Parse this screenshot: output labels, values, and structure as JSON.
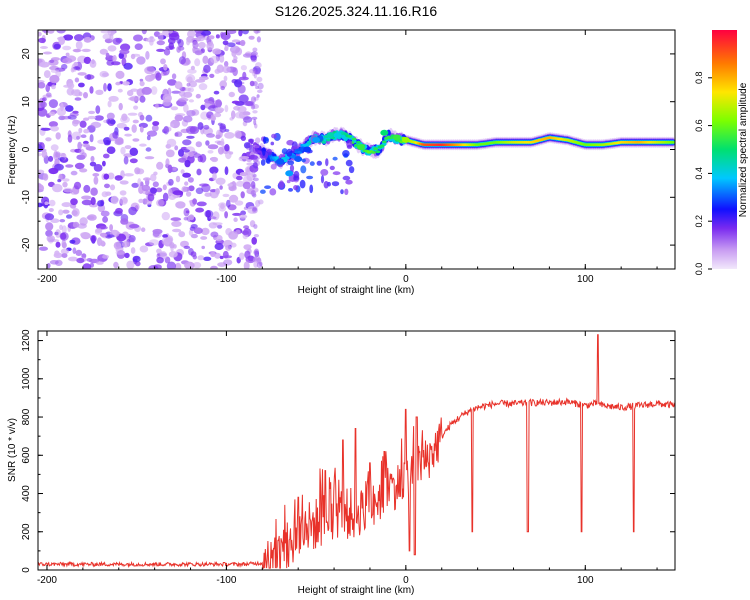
{
  "figure_title": "S126.2025.324.11.16.R16",
  "chart_data": [
    {
      "type": "heatmap",
      "title": "S126.2025.324.11.16.R16",
      "xlabel": "Height of straight line (km)",
      "ylabel": "Frequency (Hz)",
      "xlim": [
        -205,
        150
      ],
      "ylim": [
        -25,
        25
      ],
      "xticks": [
        -200,
        -100,
        0,
        100
      ],
      "yticks": [
        -20,
        -10,
        0,
        10,
        20
      ],
      "colorbar": {
        "label": "Normalized spectral amplitude",
        "range": [
          0,
          1
        ],
        "ticks": [
          0.0,
          0.2,
          0.4,
          0.6,
          0.8
        ]
      },
      "regions": [
        {
          "name": "noise",
          "x_range": [
            -205,
            -83
          ],
          "description_level": "scattered low-amplitude purple"
        },
        {
          "name": "signal",
          "x_range": [
            -83,
            150
          ]
        }
      ],
      "ridge": {
        "x": [
          -85,
          -80,
          -75,
          -70,
          -65,
          -60,
          -55,
          -50,
          -45,
          -40,
          -35,
          -30,
          -25,
          -20,
          -15,
          -10,
          -5,
          0,
          5,
          10,
          20,
          30,
          40,
          50,
          60,
          70,
          80,
          90,
          100,
          110,
          120,
          130,
          140,
          150
        ],
        "y": [
          0.5,
          -0.5,
          -1.5,
          -2.5,
          -1.5,
          -0.5,
          1.5,
          2.5,
          2.0,
          3.0,
          3.0,
          2.0,
          0.5,
          -0.5,
          0.0,
          3.0,
          2.0,
          2.0,
          1.5,
          1.0,
          1.0,
          1.0,
          1.0,
          1.5,
          1.5,
          1.5,
          2.5,
          2.0,
          1.0,
          1.0,
          1.5,
          1.5,
          1.5,
          1.5
        ],
        "amplitude": [
          0.1,
          0.2,
          0.3,
          0.45,
          0.35,
          0.3,
          0.4,
          0.5,
          0.45,
          0.5,
          0.45,
          0.55,
          0.5,
          0.6,
          0.5,
          0.55,
          0.5,
          0.65,
          0.7,
          0.9,
          0.95,
          0.8,
          0.6,
          0.6,
          0.7,
          0.75,
          0.8,
          0.7,
          0.6,
          0.65,
          0.75,
          0.8,
          0.7,
          0.6
        ]
      }
    },
    {
      "type": "line",
      "xlabel": "Height of straight line (km)",
      "ylabel": "SNR (10 * v/v)",
      "xlim": [
        -205,
        150
      ],
      "ylim": [
        0,
        1250
      ],
      "xticks": [
        -200,
        -100,
        0,
        100
      ],
      "yticks": [
        0,
        200,
        400,
        600,
        800,
        1000,
        1200
      ],
      "color": "#e8322a",
      "series": [
        {
          "name": "SNR",
          "x": [
            -205,
            -180,
            -150,
            -120,
            -90,
            -75,
            -70,
            -65,
            -60,
            -55,
            -50,
            -45,
            -40,
            -35,
            -30,
            -25,
            -20,
            -15,
            -10,
            -5,
            0,
            5,
            10,
            15,
            20,
            25,
            30,
            35,
            40,
            50,
            60,
            70,
            80,
            90,
            100,
            105,
            110,
            120,
            130,
            140,
            150
          ],
          "y": [
            30,
            30,
            30,
            30,
            30,
            40,
            70,
            120,
            180,
            220,
            240,
            270,
            300,
            300,
            290,
            320,
            360,
            380,
            420,
            440,
            500,
            520,
            560,
            620,
            700,
            760,
            800,
            830,
            850,
            870,
            870,
            875,
            875,
            880,
            860,
            870,
            860,
            850,
            860,
            870,
            860
          ]
        }
      ],
      "dropouts": [
        {
          "x": 37,
          "y": 200
        },
        {
          "x": 68,
          "y": 200
        },
        {
          "x": 98,
          "y": 200
        },
        {
          "x": 107,
          "y": 450
        },
        {
          "x": 127,
          "y": 200
        }
      ],
      "spikes": [
        {
          "x": -60,
          "y": 380
        },
        {
          "x": -45,
          "y": 520
        },
        {
          "x": -35,
          "y": 680
        },
        {
          "x": -28,
          "y": 740
        },
        {
          "x": -20,
          "y": 560
        },
        {
          "x": -12,
          "y": 620
        },
        {
          "x": 0,
          "y": 840
        },
        {
          "x": 2,
          "y": 820
        },
        {
          "x": 6,
          "y": 800
        },
        {
          "x": 107,
          "y": 1230
        }
      ],
      "low_spikes": [
        {
          "x": 2,
          "y": 100
        },
        {
          "x": 5,
          "y": 80
        }
      ]
    }
  ]
}
